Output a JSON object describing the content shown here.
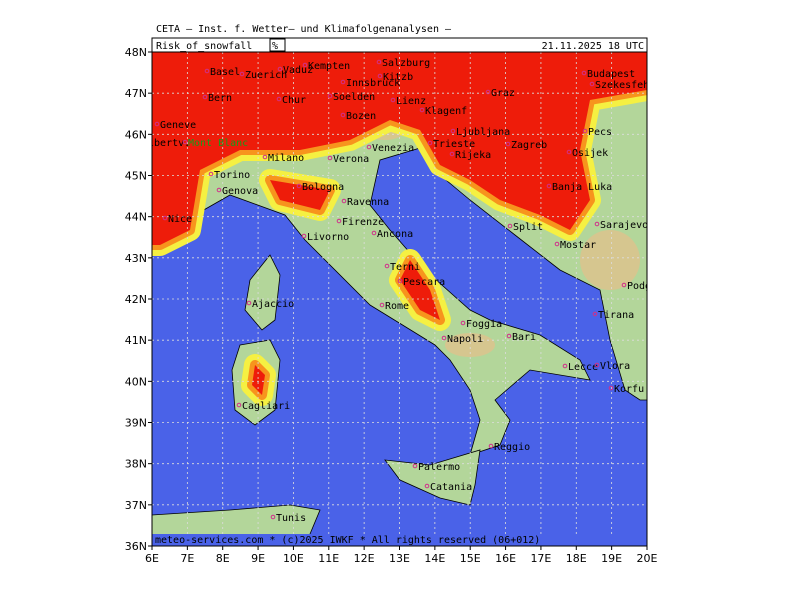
{
  "header": "CETA — Inst. f. Wetter— und Klimafolgenanalysen —",
  "title": "Risk_of_snowfall",
  "unit": "%",
  "valid_time": "21.11.2025 18 UTC",
  "lat_labels": [
    "48N",
    "47N",
    "46N",
    "45N",
    "44N",
    "43N",
    "42N",
    "41N",
    "40N",
    "39N",
    "38N",
    "37N",
    "36N"
  ],
  "lon_labels": [
    "6E",
    "7E",
    "8E",
    "9E",
    "10E",
    "11E",
    "12E",
    "13E",
    "14E",
    "15E",
    "16E",
    "17E",
    "18E",
    "19E",
    "20E"
  ],
  "places": [
    "Basel",
    "Zuerich",
    "Vaduz",
    "Kempten",
    "Salzburg",
    "Kitzb",
    "Innsbruck",
    "Soelden",
    "Chur",
    "Bern",
    "Lienz",
    "Graz",
    "Budapest",
    "Szekesfeh",
    "Bozen",
    "Klagenf",
    "Ljubljana",
    "Geneve",
    "Albertv.",
    "Mont Blanc",
    "Venezia",
    "Trieste",
    "Rijeka",
    "Zagreb",
    "Pecs",
    "Osijek",
    "Milano",
    "Verona",
    "Torino",
    "Banja Luka",
    "Genova",
    "Bologna",
    "Ravenna",
    "Nice",
    "Firenze",
    "Sarajevo",
    "Livorno",
    "Ancona",
    "Split",
    "Mostar",
    "Podgorica",
    "Terni",
    "Pescara",
    "Ajaccio",
    "Rome",
    "Tirana",
    "Foggia",
    "Bari",
    "Napoli",
    "Lecce",
    "Vlora",
    "Korfu",
    "Cagliari",
    "Reggio",
    "Palermo",
    "Catania",
    "Tunis"
  ],
  "footer": "meteo-services.com * (c)2025 IWKF * All rights reserved (06+012)"
}
